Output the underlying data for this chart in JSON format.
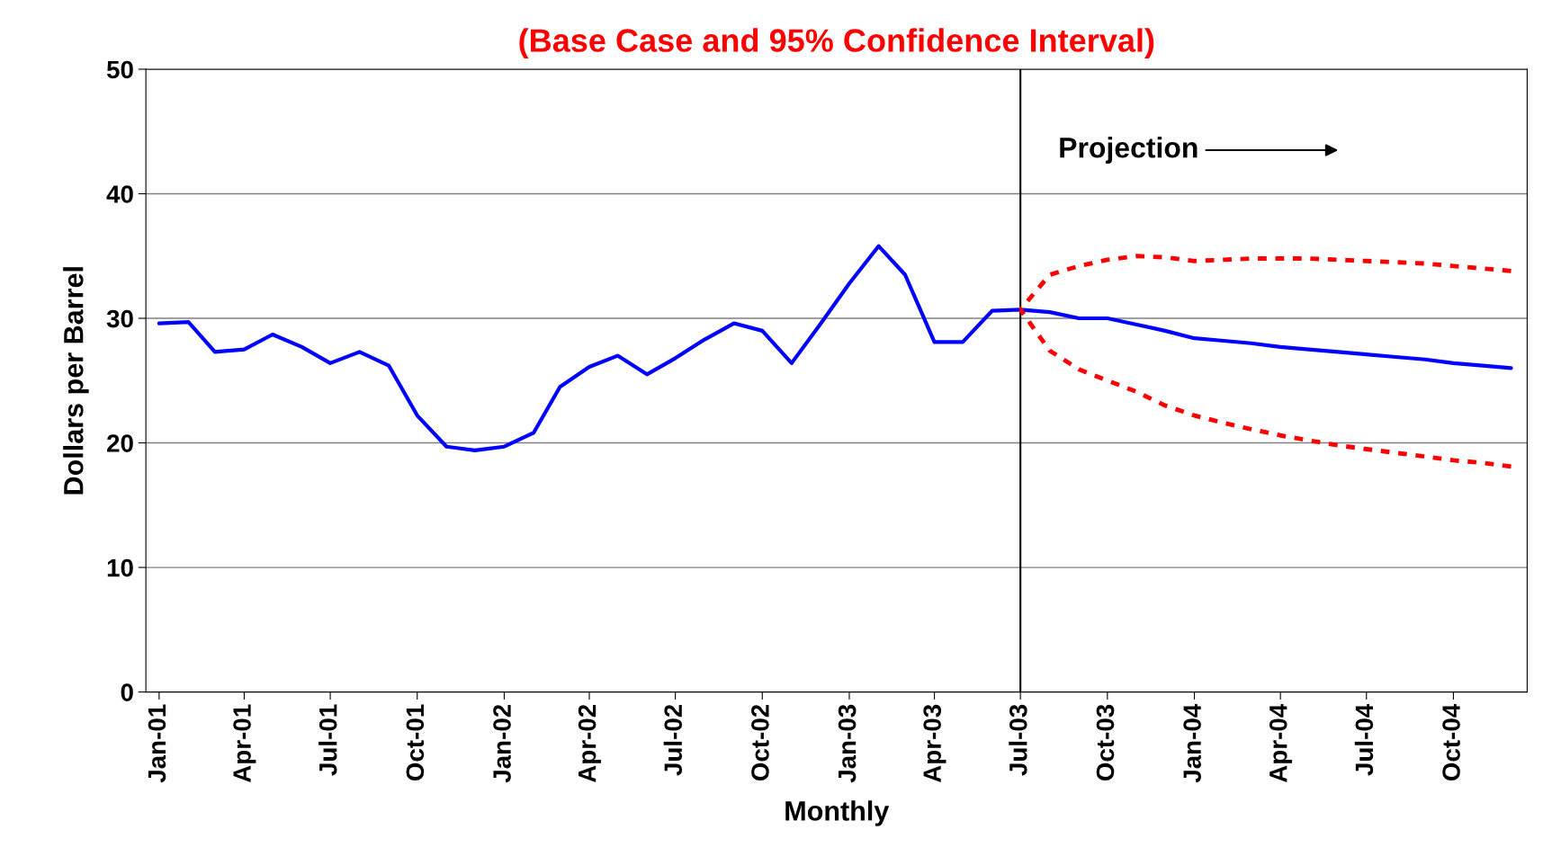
{
  "chart_data": {
    "type": "line",
    "title": "(Base Case and 95% Confidence Interval)",
    "xlabel": "Monthly",
    "ylabel": "Dollars per Barrel",
    "series": [
      {
        "color": "#0000ff",
        "line_style": "solid",
        "x": [
          "2001-01-15",
          "2001-02-15",
          "2001-03-15",
          "2001-04-15",
          "2001-05-15",
          "2001-06-15",
          "2001-07-15",
          "2001-08-15",
          "2001-09-15",
          "2001-10-15",
          "2001-11-15",
          "2001-12-15",
          "2002-01-15",
          "2002-02-15",
          "2002-03-15",
          "2002-04-15",
          "2002-05-15",
          "2002-06-15",
          "2002-07-15",
          "2002-08-15",
          "2002-09-15",
          "2002-10-15",
          "2002-11-15",
          "2002-12-15",
          "2003-01-15",
          "2003-02-15",
          "2003-03-15",
          "2003-04-15",
          "2003-05-15",
          "2003-06-15",
          "2003-07-15",
          "2003-08-15",
          "2003-09-15",
          "2003-10-15",
          "2003-11-15",
          "2003-12-15",
          "2004-01-15",
          "2004-02-15",
          "2004-03-15",
          "2004-04-15",
          "2004-05-15",
          "2004-06-15",
          "2004-07-15",
          "2004-08-15",
          "2004-09-15",
          "2004-10-15",
          "2004-11-15",
          "2004-12-15"
        ],
        "values": [
          29.6,
          29.7,
          27.3,
          27.5,
          28.7,
          27.7,
          26.4,
          27.3,
          26.2,
          22.2,
          19.7,
          19.4,
          19.7,
          20.8,
          24.5,
          26.1,
          27.0,
          25.5,
          26.8,
          28.3,
          29.6,
          29.0,
          26.4,
          29.5,
          32.8,
          35.8,
          33.5,
          28.1,
          28.1,
          30.6,
          30.7,
          30.5,
          30.0,
          30.0,
          29.5,
          29.0,
          28.4,
          28.2,
          28.0,
          27.7,
          27.5,
          27.3,
          27.1,
          26.9,
          26.7,
          26.4,
          26.2,
          26.0
        ]
      },
      {
        "color": "#ff0000",
        "line_style": "dashed",
        "x": [
          "2003-07-15",
          "2003-08-15",
          "2003-09-15",
          "2003-10-15",
          "2003-11-15",
          "2003-12-15",
          "2004-01-15",
          "2004-02-15",
          "2004-03-15",
          "2004-04-15",
          "2004-05-15",
          "2004-06-15",
          "2004-07-15",
          "2004-08-15",
          "2004-09-15",
          "2004-10-15",
          "2004-11-15",
          "2004-12-15"
        ],
        "values": [
          30.7,
          33.5,
          34.2,
          34.7,
          35.0,
          34.9,
          34.6,
          34.7,
          34.8,
          34.8,
          34.8,
          34.7,
          34.6,
          34.5,
          34.4,
          34.2,
          34.0,
          33.8
        ]
      },
      {
        "color": "#ff0000",
        "line_style": "dashed",
        "x": [
          "2003-07-15",
          "2003-08-15",
          "2003-09-15",
          "2003-10-15",
          "2003-11-15",
          "2003-12-15",
          "2004-01-15",
          "2004-02-15",
          "2004-03-15",
          "2004-04-15",
          "2004-05-15",
          "2004-06-15",
          "2004-07-15",
          "2004-08-15",
          "2004-09-15",
          "2004-10-15",
          "2004-11-15",
          "2004-12-15"
        ],
        "values": [
          30.7,
          27.4,
          25.9,
          25.0,
          24.1,
          23.0,
          22.2,
          21.6,
          21.1,
          20.6,
          20.2,
          19.8,
          19.5,
          19.2,
          18.9,
          18.6,
          18.4,
          18.1
        ]
      }
    ],
    "xlim": [
      "2001-01-01",
      "2005-01-01"
    ],
    "xticks": [
      {
        "value": "2001-01-15",
        "label": "Jan-01"
      },
      {
        "value": "2001-04-15",
        "label": "Apr-01"
      },
      {
        "value": "2001-07-15",
        "label": "Jul-01"
      },
      {
        "value": "2001-10-15",
        "label": "Oct-01"
      },
      {
        "value": "2002-01-15",
        "label": "Jan-02"
      },
      {
        "value": "2002-04-15",
        "label": "Apr-02"
      },
      {
        "value": "2002-07-15",
        "label": "Jul-02"
      },
      {
        "value": "2002-10-15",
        "label": "Oct-02"
      },
      {
        "value": "2003-01-15",
        "label": "Jan-03"
      },
      {
        "value": "2003-04-15",
        "label": "Apr-03"
      },
      {
        "value": "2003-07-15",
        "label": "Jul-03"
      },
      {
        "value": "2003-10-15",
        "label": "Oct-03"
      },
      {
        "value": "2004-01-15",
        "label": "Jan-04"
      },
      {
        "value": "2004-04-15",
        "label": "Apr-04"
      },
      {
        "value": "2004-07-15",
        "label": "Jul-04"
      },
      {
        "value": "2004-10-15",
        "label": "Oct-04"
      }
    ],
    "ylim": [
      0,
      50
    ],
    "yticks": [
      0,
      10,
      20,
      30,
      40,
      50
    ],
    "grid": "y",
    "ref_lines": [
      {
        "axis": "x",
        "value": "2003-07-15",
        "label": "Projection",
        "color": "#000000"
      }
    ],
    "marker": "none"
  }
}
